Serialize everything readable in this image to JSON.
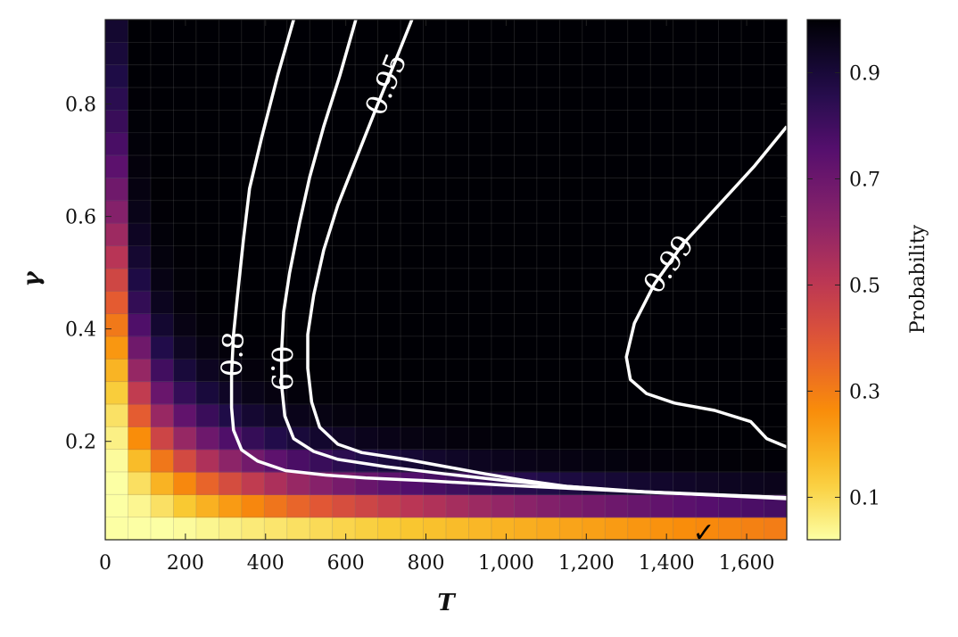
{
  "chart_data": {
    "type": "heatmap",
    "title": "",
    "xlabel": "T",
    "ylabel": "γ",
    "xlim": [
      0,
      1700
    ],
    "ylim": [
      0.025,
      0.95
    ],
    "x_ticks": [
      0,
      200,
      400,
      600,
      800,
      1000,
      1200,
      1400,
      1600
    ],
    "x_tick_labels": [
      "0",
      "200",
      "400",
      "600",
      "800",
      "1,000",
      "1,200",
      "1,400",
      "1,600"
    ],
    "y_ticks": [
      0.2,
      0.4,
      0.6,
      0.8
    ],
    "y_tick_labels": [
      "0.2",
      "0.4",
      "0.6",
      "0.8"
    ],
    "grid": {
      "nx": 30,
      "ny": 23
    },
    "colormap": "inferno_r",
    "colorbar": {
      "label": "Probability",
      "range": [
        0.02,
        1.0
      ],
      "ticks": [
        0.1,
        0.3,
        0.5,
        0.7,
        0.9
      ],
      "tick_labels": [
        "0.1",
        "0.3",
        "0.5",
        "0.7",
        "0.9"
      ]
    },
    "contours": [
      {
        "level": "0.8",
        "points": [
          [
            470,
            0.95
          ],
          [
            430,
            0.85
          ],
          [
            390,
            0.74
          ],
          [
            360,
            0.65
          ],
          [
            345,
            0.56
          ],
          [
            330,
            0.46
          ],
          [
            320,
            0.39
          ],
          [
            315,
            0.32
          ],
          [
            315,
            0.26
          ],
          [
            320,
            0.22
          ],
          [
            340,
            0.185
          ],
          [
            380,
            0.165
          ],
          [
            450,
            0.148
          ],
          [
            550,
            0.14
          ],
          [
            650,
            0.135
          ],
          [
            800,
            0.13
          ],
          [
            1000,
            0.122
          ],
          [
            1200,
            0.115
          ],
          [
            1400,
            0.108
          ],
          [
            1700,
            0.1
          ]
        ]
      },
      {
        "level": "0.9",
        "points": [
          [
            625,
            0.95
          ],
          [
            585,
            0.85
          ],
          [
            545,
            0.76
          ],
          [
            510,
            0.67
          ],
          [
            485,
            0.59
          ],
          [
            460,
            0.5
          ],
          [
            445,
            0.43
          ],
          [
            440,
            0.36
          ],
          [
            440,
            0.3
          ],
          [
            448,
            0.245
          ],
          [
            470,
            0.205
          ],
          [
            520,
            0.182
          ],
          [
            580,
            0.168
          ],
          [
            700,
            0.155
          ],
          [
            850,
            0.142
          ],
          [
            1000,
            0.13
          ],
          [
            1150,
            0.12
          ],
          [
            1300,
            0.112
          ],
          [
            1500,
            0.105
          ],
          [
            1700,
            0.098
          ]
        ]
      },
      {
        "level": "0.95",
        "points": [
          [
            765,
            0.95
          ],
          [
            720,
            0.87
          ],
          [
            680,
            0.8
          ],
          [
            630,
            0.71
          ],
          [
            580,
            0.62
          ],
          [
            545,
            0.54
          ],
          [
            520,
            0.46
          ],
          [
            505,
            0.39
          ],
          [
            505,
            0.33
          ],
          [
            515,
            0.27
          ],
          [
            535,
            0.225
          ],
          [
            580,
            0.195
          ],
          [
            640,
            0.18
          ],
          [
            750,
            0.168
          ],
          [
            850,
            0.155
          ],
          [
            950,
            0.142
          ],
          [
            1050,
            0.13
          ],
          [
            1150,
            0.12
          ],
          [
            1350,
            0.11
          ],
          [
            1700,
            0.1
          ]
        ]
      },
      {
        "level": "0.99",
        "points": [
          [
            1700,
            0.76
          ],
          [
            1620,
            0.69
          ],
          [
            1530,
            0.62
          ],
          [
            1440,
            0.55
          ],
          [
            1370,
            0.48
          ],
          [
            1320,
            0.41
          ],
          [
            1300,
            0.35
          ],
          [
            1310,
            0.31
          ],
          [
            1350,
            0.285
          ],
          [
            1420,
            0.268
          ],
          [
            1520,
            0.255
          ],
          [
            1610,
            0.235
          ],
          [
            1650,
            0.205
          ],
          [
            1700,
            0.19
          ]
        ]
      }
    ],
    "annotations": [
      {
        "text": "✓",
        "x": 1480,
        "y": 0.05
      }
    ]
  }
}
